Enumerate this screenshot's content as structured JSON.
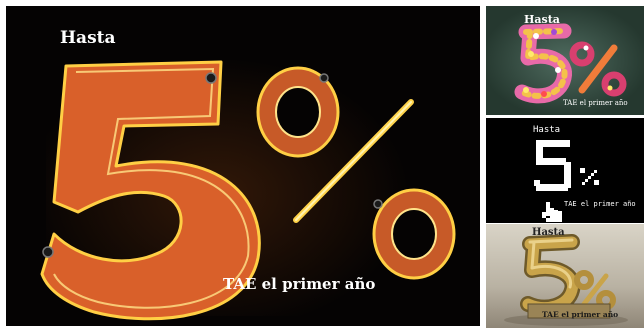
{
  "main": {
    "hasta": "Hasta",
    "tae": "TAE el primer año",
    "colors": {
      "neon_fill": "#e0632a",
      "neon_tube": "#ffd34a",
      "background": "#050303"
    }
  },
  "thumbnails": [
    {
      "style": "flowers",
      "hasta": "Hasta",
      "tae": "TAE el primer año"
    },
    {
      "style": "pixel",
      "hasta": "Hasta",
      "tae": "TAE el primer año"
    },
    {
      "style": "gold-3d",
      "hasta": "Hasta",
      "tae": "TAE el primer año"
    }
  ]
}
